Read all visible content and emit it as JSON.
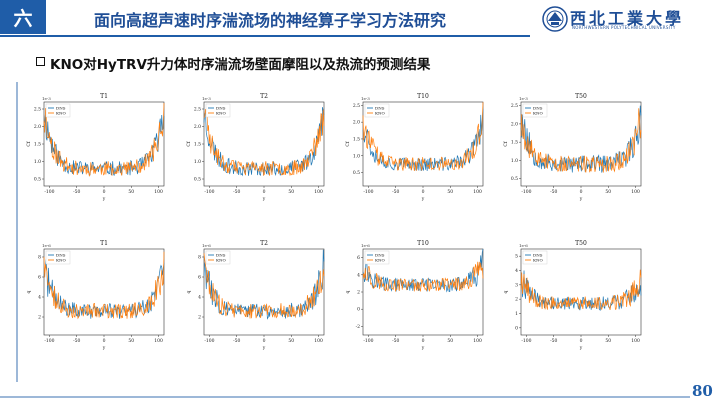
{
  "header": {
    "section_number": "六",
    "title": "面向高超声速时序湍流场的神经算子学习方法研究"
  },
  "logo": {
    "name_cn": "西北工業大學",
    "name_en": "NORTHWESTERN POLYTECHNICAL UNIVERSITY"
  },
  "subtitle": "KNO对HyTRV升力体时序湍流场壁面摩阻以及热流的预测结果",
  "page_number": "80",
  "colors": {
    "accent": "#1f5da8",
    "dns": "#1f77b4",
    "kno": "#ff7f0e"
  },
  "legend": [
    "DNS",
    "KNO"
  ],
  "chart_data": [
    {
      "type": "line",
      "panel": "cf-T1",
      "title": "T1",
      "ylabel": "Cf",
      "xlabel": "y",
      "exponent": "1e-3",
      "xlim": [
        -110,
        110
      ],
      "ylim": [
        0.3,
        2.7
      ],
      "xticks": [
        -100,
        -50,
        0,
        50,
        100
      ],
      "yticks": [
        0.5,
        1.0,
        1.5,
        2.0,
        2.5
      ],
      "seed": 11,
      "base": 0.8,
      "edge": 1.6,
      "noise": 0.35,
      "series": [
        {
          "name": "DNS",
          "x_range": [
            -110,
            110
          ],
          "samples": 160
        },
        {
          "name": "KNO",
          "x_range": [
            -110,
            110
          ],
          "samples": 160
        }
      ]
    },
    {
      "type": "line",
      "panel": "cf-T2",
      "title": "T2",
      "ylabel": "Cf",
      "xlabel": "y",
      "exponent": "1e-3",
      "xlim": [
        -110,
        110
      ],
      "ylim": [
        0.3,
        2.7
      ],
      "xticks": [
        -100,
        -50,
        0,
        50,
        100
      ],
      "yticks": [
        0.5,
        1.0,
        1.5,
        2.0,
        2.5
      ],
      "seed": 23,
      "base": 0.8,
      "edge": 1.6,
      "noise": 0.35,
      "series": [
        {
          "name": "DNS",
          "x_range": [
            -110,
            110
          ],
          "samples": 160
        },
        {
          "name": "KNO",
          "x_range": [
            -110,
            110
          ],
          "samples": 160
        }
      ]
    },
    {
      "type": "line",
      "panel": "cf-T10",
      "title": "T10",
      "ylabel": "Cf",
      "xlabel": "y",
      "exponent": "1e-3",
      "xlim": [
        -110,
        110
      ],
      "ylim": [
        0.1,
        2.6
      ],
      "xticks": [
        -100,
        -50,
        0,
        50,
        100
      ],
      "yticks": [
        0.5,
        1.0,
        1.5,
        2.0,
        2.5
      ],
      "seed": 37,
      "base": 0.75,
      "edge": 1.3,
      "noise": 0.35,
      "series": [
        {
          "name": "DNS",
          "x_range": [
            -110,
            110
          ],
          "samples": 160
        },
        {
          "name": "KNO",
          "x_range": [
            -110,
            110
          ],
          "samples": 160
        }
      ]
    },
    {
      "type": "line",
      "panel": "cf-T50",
      "title": "T50",
      "ylabel": "Cf",
      "xlabel": "y",
      "exponent": "1e-3",
      "xlim": [
        -110,
        110
      ],
      "ylim": [
        0.3,
        2.6
      ],
      "xticks": [
        -100,
        -50,
        0,
        50,
        100
      ],
      "yticks": [
        0.5,
        1.0,
        1.5,
        2.0,
        2.5
      ],
      "seed": 53,
      "base": 0.9,
      "edge": 1.3,
      "noise": 0.4,
      "series": [
        {
          "name": "DNS",
          "x_range": [
            -110,
            110
          ],
          "samples": 160
        },
        {
          "name": "KNO",
          "x_range": [
            -110,
            110
          ],
          "samples": 160
        }
      ]
    },
    {
      "type": "line",
      "panel": "q-T1",
      "title": "T1",
      "ylabel": "q",
      "xlabel": "y",
      "exponent": "1e-6",
      "xlim": [
        -110,
        110
      ],
      "ylim": [
        0.2,
        8.8
      ],
      "xticks": [
        -100,
        -50,
        0,
        50,
        100
      ],
      "yticks": [
        2,
        4,
        6,
        8
      ],
      "seed": 71,
      "base": 2.6,
      "edge": 4.5,
      "noise": 1.3,
      "series": [
        {
          "name": "DNS",
          "x_range": [
            -110,
            110
          ],
          "samples": 160
        },
        {
          "name": "KNO",
          "x_range": [
            -110,
            110
          ],
          "samples": 160
        }
      ]
    },
    {
      "type": "line",
      "panel": "q-T2",
      "title": "T2",
      "ylabel": "q",
      "xlabel": "y",
      "exponent": "1e-6",
      "xlim": [
        -110,
        110
      ],
      "ylim": [
        0.2,
        8.8
      ],
      "xticks": [
        -100,
        -50,
        0,
        50,
        100
      ],
      "yticks": [
        2,
        4,
        6,
        8
      ],
      "seed": 83,
      "base": 2.6,
      "edge": 4.5,
      "noise": 1.3,
      "series": [
        {
          "name": "DNS",
          "x_range": [
            -110,
            110
          ],
          "samples": 160
        },
        {
          "name": "KNO",
          "x_range": [
            -110,
            110
          ],
          "samples": 160
        }
      ]
    },
    {
      "type": "line",
      "panel": "q-T10",
      "title": "T10",
      "ylabel": "q",
      "xlabel": "y",
      "exponent": "1e-6",
      "xlim": [
        -110,
        110
      ],
      "ylim": [
        -3,
        7
      ],
      "xticks": [
        -100,
        -50,
        0,
        50,
        100
      ],
      "yticks": [
        -2,
        0,
        2,
        4,
        6
      ],
      "seed": 97,
      "base": 2.8,
      "edge": 2.5,
      "noise": 1.3,
      "series": [
        {
          "name": "DNS",
          "x_range": [
            -110,
            110
          ],
          "samples": 160
        },
        {
          "name": "KNO",
          "x_range": [
            -110,
            110
          ],
          "samples": 160
        }
      ]
    },
    {
      "type": "line",
      "panel": "q-T50",
      "title": "T50",
      "ylabel": "q",
      "xlabel": "y",
      "exponent": "1e-6",
      "xlim": [
        -110,
        110
      ],
      "ylim": [
        -0.5,
        5.5
      ],
      "xticks": [
        -100,
        -50,
        0,
        50,
        100
      ],
      "yticks": [
        0,
        1,
        2,
        3,
        4,
        5
      ],
      "seed": 109,
      "base": 1.7,
      "edge": 1.8,
      "noise": 0.8,
      "series": [
        {
          "name": "DNS",
          "x_range": [
            -110,
            110
          ],
          "samples": 160
        },
        {
          "name": "KNO",
          "x_range": [
            -110,
            110
          ],
          "samples": 160
        }
      ]
    }
  ]
}
